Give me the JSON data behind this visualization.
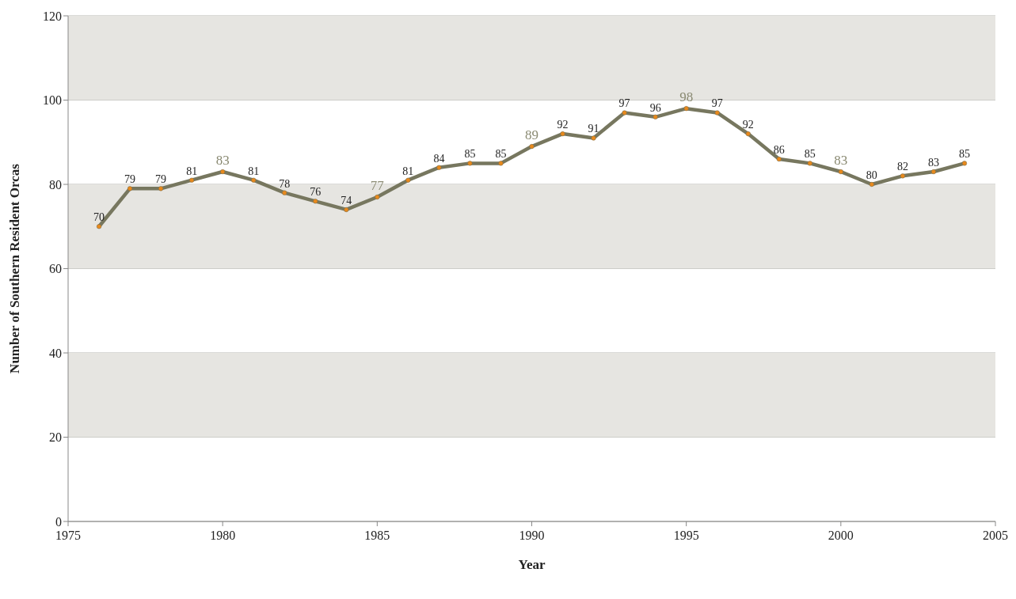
{
  "chart_data": {
    "type": "line",
    "xlabel": "Year",
    "ylabel": "Number of Southern Resident Orcas",
    "x": [
      1976,
      1977,
      1978,
      1979,
      1980,
      1981,
      1982,
      1983,
      1984,
      1985,
      1986,
      1987,
      1988,
      1989,
      1990,
      1991,
      1992,
      1993,
      1994,
      1995,
      1996,
      1997,
      1998,
      1999,
      2000,
      2001,
      2002,
      2003,
      2004
    ],
    "series": [
      {
        "color": "#77775f",
        "values": [
          70,
          79,
          79,
          81,
          83,
          81,
          78,
          76,
          74,
          77,
          81,
          84,
          85,
          85,
          89,
          92,
          91,
          97,
          96,
          98,
          97,
          92,
          86,
          85,
          83,
          80,
          82,
          83,
          85
        ]
      }
    ],
    "xlim": [
      1975,
      2005
    ],
    "xticks": [
      1975,
      1980,
      1985,
      1990,
      1995,
      2000,
      2005
    ],
    "ylim": [
      0,
      120
    ],
    "yticks": [
      0,
      20,
      40,
      60,
      80,
      100,
      120
    ],
    "bands": [
      {
        "axis": "y",
        "from": 20,
        "to": 40,
        "color": "#e6e5e1"
      },
      {
        "axis": "y",
        "from": 60,
        "to": 80,
        "color": "#e6e5e1"
      },
      {
        "axis": "y",
        "from": 100,
        "to": 120,
        "color": "#e6e5e1"
      }
    ],
    "grid": "y",
    "marker": "circle",
    "line_style": "solid",
    "data_labels": true
  }
}
